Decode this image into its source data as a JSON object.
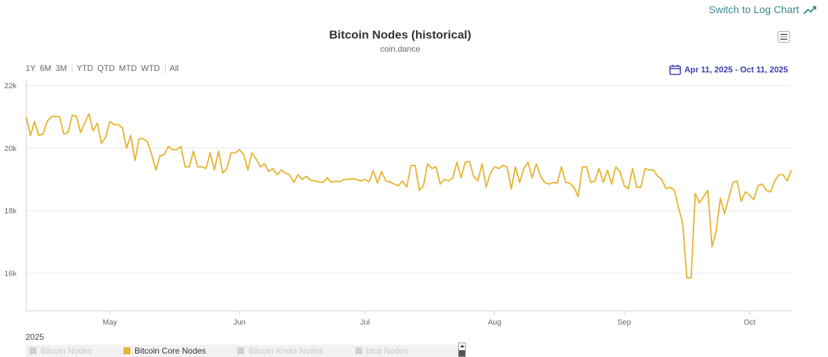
{
  "header": {
    "log_link_label": "Switch to Log Chart",
    "menu_icon": "hamburger-menu-icon"
  },
  "range_selector": {
    "buttons": [
      "1Y",
      "6M",
      "3M",
      "YTD",
      "QTD",
      "MTD",
      "WTD",
      "All"
    ],
    "date_range": "Apr 11, 2025 - Oct 11, 2025",
    "date_icon": "calendar-icon"
  },
  "colors": {
    "series_line": "#e6b533",
    "accent_link": "#3a8a93",
    "date_range_text": "#3b3bb5",
    "legend_inactive": "#c8c8c8"
  },
  "chart_data": {
    "type": "line",
    "title": "Bitcoin Nodes (historical)",
    "subtitle": "coin.dance",
    "xlabel": "",
    "ylabel": "",
    "x_range": [
      "2025-04-11",
      "2025-10-11"
    ],
    "ylim": [
      14800,
      22200
    ],
    "y_ticks": [
      16000,
      18000,
      20000,
      22000
    ],
    "y_tick_labels": [
      "16k",
      "18k",
      "20k",
      "22k"
    ],
    "x_ticks": [
      {
        "date": "2025-05-01",
        "label": "May"
      },
      {
        "date": "2025-06-01",
        "label": "Jun"
      },
      {
        "date": "2025-07-01",
        "label": "Jul"
      },
      {
        "date": "2025-08-01",
        "label": "Aug"
      },
      {
        "date": "2025-09-01",
        "label": "Sep"
      },
      {
        "date": "2025-10-01",
        "label": "Oct"
      }
    ],
    "year_label": "2025",
    "grid": true,
    "legend": [
      {
        "name": "Bitcoin Nodes",
        "active": false
      },
      {
        "name": "Bitcoin Core Nodes",
        "active": true
      },
      {
        "name": "Bitcoin Knots Nodes",
        "active": false
      },
      {
        "name": "btcd Nodes",
        "active": false
      }
    ],
    "series": [
      {
        "name": "Bitcoin Core Nodes",
        "points": [
          [
            "2025-04-11",
            21000
          ],
          [
            "2025-04-12",
            20400
          ],
          [
            "2025-04-13",
            20850
          ],
          [
            "2025-04-14",
            20400
          ],
          [
            "2025-04-15",
            20450
          ],
          [
            "2025-04-16",
            20850
          ],
          [
            "2025-04-17",
            21000
          ],
          [
            "2025-04-18",
            21020
          ],
          [
            "2025-04-19",
            21000
          ],
          [
            "2025-04-20",
            20450
          ],
          [
            "2025-04-21",
            20500
          ],
          [
            "2025-04-22",
            21050
          ],
          [
            "2025-04-23",
            21020
          ],
          [
            "2025-04-24",
            20500
          ],
          [
            "2025-04-25",
            20800
          ],
          [
            "2025-04-26",
            21100
          ],
          [
            "2025-04-27",
            20550
          ],
          [
            "2025-04-28",
            20800
          ],
          [
            "2025-04-29",
            20150
          ],
          [
            "2025-04-30",
            20350
          ],
          [
            "2025-05-01",
            20850
          ],
          [
            "2025-05-02",
            20750
          ],
          [
            "2025-05-03",
            20750
          ],
          [
            "2025-05-04",
            20650
          ],
          [
            "2025-05-05",
            20000
          ],
          [
            "2025-05-06",
            20400
          ],
          [
            "2025-05-07",
            19600
          ],
          [
            "2025-05-08",
            20300
          ],
          [
            "2025-05-09",
            20300
          ],
          [
            "2025-05-10",
            20200
          ],
          [
            "2025-05-11",
            19800
          ],
          [
            "2025-05-12",
            19300
          ],
          [
            "2025-05-13",
            19750
          ],
          [
            "2025-05-14",
            19800
          ],
          [
            "2025-05-15",
            20050
          ],
          [
            "2025-05-16",
            19950
          ],
          [
            "2025-05-17",
            19950
          ],
          [
            "2025-05-18",
            20050
          ],
          [
            "2025-05-19",
            19400
          ],
          [
            "2025-05-20",
            19400
          ],
          [
            "2025-05-21",
            19900
          ],
          [
            "2025-05-22",
            19400
          ],
          [
            "2025-05-23",
            19400
          ],
          [
            "2025-05-24",
            19350
          ],
          [
            "2025-05-25",
            19850
          ],
          [
            "2025-05-26",
            19300
          ],
          [
            "2025-05-27",
            19900
          ],
          [
            "2025-05-28",
            19200
          ],
          [
            "2025-05-29",
            19350
          ],
          [
            "2025-05-30",
            19850
          ],
          [
            "2025-05-31",
            19850
          ],
          [
            "2025-06-01",
            19950
          ],
          [
            "2025-06-02",
            19800
          ],
          [
            "2025-06-03",
            19300
          ],
          [
            "2025-06-04",
            19850
          ],
          [
            "2025-06-05",
            19650
          ],
          [
            "2025-06-06",
            19400
          ],
          [
            "2025-06-07",
            19500
          ],
          [
            "2025-06-08",
            19250
          ],
          [
            "2025-06-09",
            19350
          ],
          [
            "2025-06-10",
            19150
          ],
          [
            "2025-06-11",
            19300
          ],
          [
            "2025-06-12",
            19200
          ],
          [
            "2025-06-13",
            19150
          ],
          [
            "2025-06-14",
            18900
          ],
          [
            "2025-06-15",
            19150
          ],
          [
            "2025-06-16",
            19000
          ],
          [
            "2025-06-17",
            19100
          ],
          [
            "2025-06-18",
            18980
          ],
          [
            "2025-06-19",
            18950
          ],
          [
            "2025-06-20",
            18920
          ],
          [
            "2025-06-21",
            18900
          ],
          [
            "2025-06-22",
            19050
          ],
          [
            "2025-06-23",
            18900
          ],
          [
            "2025-06-24",
            18950
          ],
          [
            "2025-06-25",
            18920
          ],
          [
            "2025-06-26",
            19000
          ],
          [
            "2025-06-27",
            19000
          ],
          [
            "2025-06-28",
            19020
          ],
          [
            "2025-06-29",
            19000
          ],
          [
            "2025-06-30",
            18950
          ],
          [
            "2025-07-01",
            19000
          ],
          [
            "2025-07-02",
            18920
          ],
          [
            "2025-07-03",
            19280
          ],
          [
            "2025-07-04",
            18880
          ],
          [
            "2025-07-05",
            19250
          ],
          [
            "2025-07-06",
            18950
          ],
          [
            "2025-07-07",
            18920
          ],
          [
            "2025-07-08",
            18850
          ],
          [
            "2025-07-09",
            18800
          ],
          [
            "2025-07-10",
            18950
          ],
          [
            "2025-07-11",
            18750
          ],
          [
            "2025-07-12",
            19450
          ],
          [
            "2025-07-13",
            19450
          ],
          [
            "2025-07-14",
            18650
          ],
          [
            "2025-07-15",
            18800
          ],
          [
            "2025-07-16",
            19500
          ],
          [
            "2025-07-17",
            19350
          ],
          [
            "2025-07-18",
            19400
          ],
          [
            "2025-07-19",
            18850
          ],
          [
            "2025-07-20",
            19000
          ],
          [
            "2025-07-21",
            18950
          ],
          [
            "2025-07-22",
            19050
          ],
          [
            "2025-07-23",
            19550
          ],
          [
            "2025-07-24",
            19050
          ],
          [
            "2025-07-25",
            19550
          ],
          [
            "2025-07-26",
            19580
          ],
          [
            "2025-07-27",
            19100
          ],
          [
            "2025-07-28",
            18950
          ],
          [
            "2025-07-29",
            19500
          ],
          [
            "2025-07-30",
            18750
          ],
          [
            "2025-07-31",
            19200
          ],
          [
            "2025-08-01",
            19400
          ],
          [
            "2025-08-02",
            19350
          ],
          [
            "2025-08-03",
            19450
          ],
          [
            "2025-08-04",
            19400
          ],
          [
            "2025-08-05",
            18700
          ],
          [
            "2025-08-06",
            19400
          ],
          [
            "2025-08-07",
            18900
          ],
          [
            "2025-08-08",
            19350
          ],
          [
            "2025-08-09",
            19550
          ],
          [
            "2025-08-10",
            19050
          ],
          [
            "2025-08-11",
            19500
          ],
          [
            "2025-08-12",
            19100
          ],
          [
            "2025-08-13",
            18900
          ],
          [
            "2025-08-14",
            18850
          ],
          [
            "2025-08-15",
            18900
          ],
          [
            "2025-08-16",
            18880
          ],
          [
            "2025-08-17",
            19400
          ],
          [
            "2025-08-18",
            18900
          ],
          [
            "2025-08-19",
            18880
          ],
          [
            "2025-08-20",
            18750
          ],
          [
            "2025-08-21",
            18450
          ],
          [
            "2025-08-22",
            19400
          ],
          [
            "2025-08-23",
            19400
          ],
          [
            "2025-08-24",
            18900
          ],
          [
            "2025-08-25",
            18950
          ],
          [
            "2025-08-26",
            19350
          ],
          [
            "2025-08-27",
            18900
          ],
          [
            "2025-08-28",
            19300
          ],
          [
            "2025-08-29",
            18850
          ],
          [
            "2025-08-30",
            19400
          ],
          [
            "2025-08-31",
            19250
          ],
          [
            "2025-09-01",
            18800
          ],
          [
            "2025-09-02",
            18700
          ],
          [
            "2025-09-03",
            19350
          ],
          [
            "2025-09-04",
            18750
          ],
          [
            "2025-09-05",
            18750
          ],
          [
            "2025-09-06",
            19350
          ],
          [
            "2025-09-07",
            19300
          ],
          [
            "2025-09-08",
            19300
          ],
          [
            "2025-09-09",
            19100
          ],
          [
            "2025-09-10",
            19000
          ],
          [
            "2025-09-11",
            18700
          ],
          [
            "2025-09-12",
            18750
          ],
          [
            "2025-09-13",
            18650
          ],
          [
            "2025-09-14",
            18100
          ],
          [
            "2025-09-15",
            17600
          ],
          [
            "2025-09-16",
            15850
          ],
          [
            "2025-09-17",
            15850
          ],
          [
            "2025-09-18",
            18550
          ],
          [
            "2025-09-19",
            18250
          ],
          [
            "2025-09-20",
            18450
          ],
          [
            "2025-09-21",
            18650
          ],
          [
            "2025-09-22",
            16850
          ],
          [
            "2025-09-23",
            17350
          ],
          [
            "2025-09-24",
            18400
          ],
          [
            "2025-09-25",
            17900
          ],
          [
            "2025-09-26",
            18400
          ],
          [
            "2025-09-27",
            18900
          ],
          [
            "2025-09-28",
            18950
          ],
          [
            "2025-09-29",
            18300
          ],
          [
            "2025-09-30",
            18600
          ],
          [
            "2025-10-01",
            18500
          ],
          [
            "2025-10-02",
            18350
          ],
          [
            "2025-10-03",
            18800
          ],
          [
            "2025-10-04",
            18850
          ],
          [
            "2025-10-05",
            18650
          ],
          [
            "2025-10-06",
            18600
          ],
          [
            "2025-10-07",
            18950
          ],
          [
            "2025-10-08",
            19150
          ],
          [
            "2025-10-09",
            19150
          ],
          [
            "2025-10-10",
            18950
          ],
          [
            "2025-10-11",
            19300
          ]
        ]
      }
    ]
  }
}
